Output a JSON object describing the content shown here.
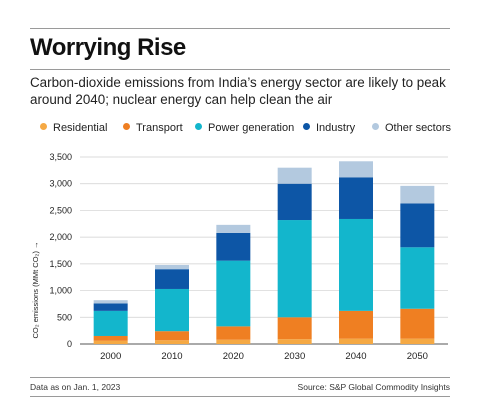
{
  "header": {
    "title": "Worrying Rise",
    "subtitle": "Carbon-dioxide emissions from India’s energy sector are likely to peak around 2040; nuclear energy can help clean the air"
  },
  "footer": {
    "left": "Data as on Jan. 1, 2023",
    "right": "Source: S&P Global Commodity Insights"
  },
  "chart_data": {
    "type": "bar",
    "stacked": true,
    "categories": [
      "2000",
      "2010",
      "2020",
      "2030",
      "2040",
      "2050"
    ],
    "series": [
      {
        "name": "Residential",
        "color": "#f5a944",
        "values": [
          60,
          70,
          80,
          90,
          100,
          100
        ]
      },
      {
        "name": "Transport",
        "color": "#ef7f22",
        "values": [
          90,
          170,
          250,
          410,
          520,
          560
        ]
      },
      {
        "name": "Power generation",
        "color": "#13b6cc",
        "values": [
          470,
          790,
          1230,
          1820,
          1720,
          1150
        ]
      },
      {
        "name": "Industry",
        "color": "#0d56a6",
        "values": [
          140,
          370,
          520,
          680,
          780,
          820
        ]
      },
      {
        "name": "Other sectors",
        "color": "#b3c9df",
        "values": [
          60,
          80,
          150,
          300,
          300,
          330
        ]
      }
    ],
    "ylabel": "CO₂ emissions (MMt CO₂) →",
    "ylim": [
      0,
      3500
    ],
    "yticks": [
      0,
      500,
      1000,
      1500,
      2000,
      2500,
      3000,
      3500
    ],
    "ytick_labels": [
      "0",
      "500",
      "1,000",
      "1,500",
      "2,000",
      "2,500",
      "3,000",
      "3,500"
    ],
    "grid": true,
    "legend_position": "top"
  }
}
